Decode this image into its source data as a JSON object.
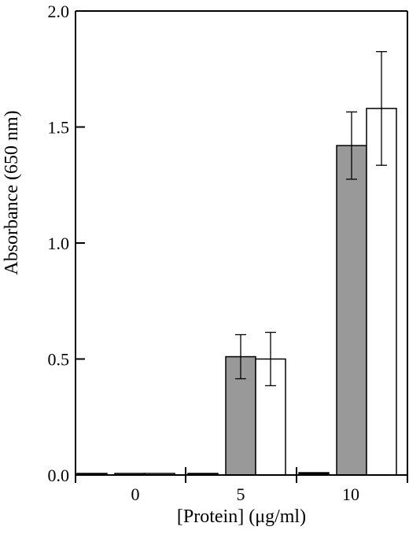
{
  "chart_data": {
    "type": "bar",
    "title": "",
    "xlabel": "[Protein] (μg/ml)",
    "ylabel": "Absorbance (650 nm)",
    "ylim": [
      0,
      2.0
    ],
    "yticks": [
      0.0,
      0.5,
      1.0,
      1.5,
      2.0
    ],
    "ytick_labels": [
      "0.0",
      "0.5",
      "1.0",
      "1.5",
      "2.0"
    ],
    "categories": [
      "0",
      "5",
      "10"
    ],
    "series": [
      {
        "fill": "#000000",
        "values": [
          0.005,
          0.005,
          0.01
        ],
        "errors": [
          0,
          0,
          0
        ]
      },
      {
        "fill": "#999999",
        "values": [
          0.005,
          0.51,
          1.42
        ],
        "errors": [
          0,
          0.095,
          0.145
        ]
      },
      {
        "fill": "#ffffff",
        "values": [
          0.005,
          0.5,
          1.58
        ],
        "errors": [
          0,
          0.115,
          0.245
        ]
      }
    ],
    "grid": false,
    "legend": "none"
  }
}
